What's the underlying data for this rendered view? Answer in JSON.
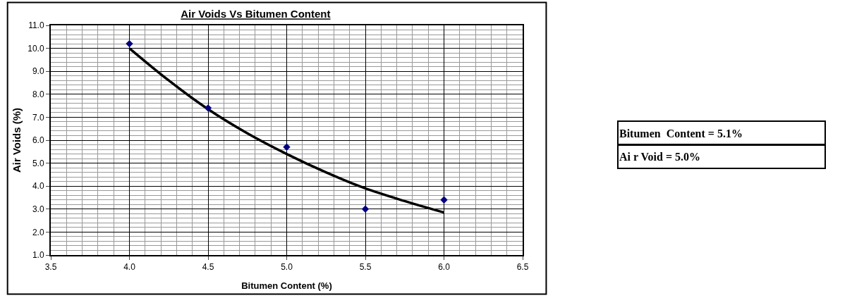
{
  "chart_data": {
    "type": "scatter",
    "title": "Air Voids Vs Bitumen Content",
    "xlabel": "Bitumen Content (%)",
    "ylabel": "Air Voids (%)",
    "series": [
      {
        "color": "#000080",
        "marker": "diamond",
        "x": [
          4.0,
          4.5,
          5.0,
          5.5,
          6.0
        ],
        "values": [
          10.2,
          7.4,
          5.7,
          3.0,
          3.4
        ]
      },
      {
        "type": "line",
        "color": "#000000",
        "marker": "none",
        "x": [
          4.0,
          4.25,
          4.5,
          4.75,
          5.0,
          5.25,
          5.5,
          5.75,
          6.0
        ],
        "values": [
          10.0,
          8.6,
          7.35,
          6.3,
          5.4,
          4.6,
          3.9,
          3.35,
          2.85
        ]
      }
    ],
    "xlim": [
      3.5,
      6.5
    ],
    "xticks": [
      {
        "value": 3.5,
        "label": "3.5"
      },
      {
        "value": 4.0,
        "label": "4.0"
      },
      {
        "value": 4.5,
        "label": "4.5"
      },
      {
        "value": 5.0,
        "label": "5.0"
      },
      {
        "value": 5.5,
        "label": "5.5"
      },
      {
        "value": 6.0,
        "label": "6.0"
      },
      {
        "value": 6.5,
        "label": "6.5"
      }
    ],
    "ylim": [
      1.0,
      11.0
    ],
    "yticks": [
      {
        "value": 1,
        "label": "1.0"
      },
      {
        "value": 2,
        "label": "2.0"
      },
      {
        "value": 3,
        "label": "3.0"
      },
      {
        "value": 4,
        "label": "4.0"
      },
      {
        "value": 5,
        "label": "5.0"
      },
      {
        "value": 6,
        "label": "6.0"
      },
      {
        "value": 7,
        "label": "7.0"
      },
      {
        "value": 8,
        "label": "8.0"
      },
      {
        "value": 9,
        "label": "9.0"
      },
      {
        "value": 10,
        "label": "10.0"
      },
      {
        "value": 11,
        "label": "11.0"
      }
    ],
    "grid": true,
    "legend": false,
    "annotations": [
      "Bitumen  Content = 5.1%",
      "Ai r Void = 5.0%"
    ]
  }
}
